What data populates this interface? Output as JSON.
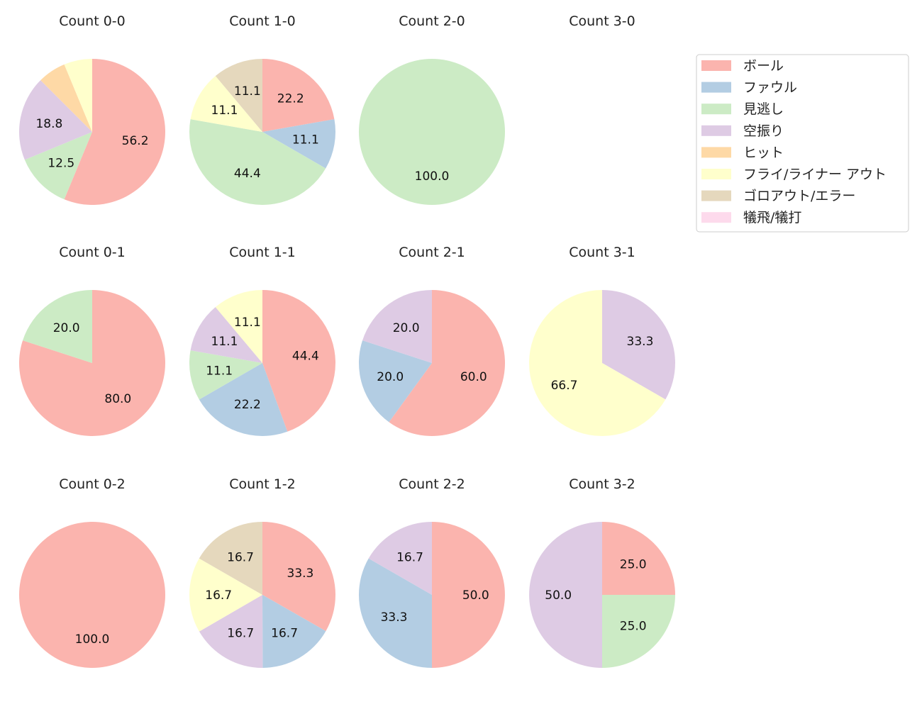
{
  "chart_data": {
    "type": "pie",
    "legend": {
      "placement": "top-right",
      "entries": [
        "ボール",
        "ファウル",
        "見逃し",
        "空振り",
        "ヒット",
        "フライ/ライナー アウト",
        "ゴロアウト/エラー",
        "犠飛/犠打"
      ]
    },
    "colors": [
      "#fbb4ae",
      "#b3cde3",
      "#ccebc5",
      "#decbe4",
      "#fed9a6",
      "#ffffcc",
      "#e5d8bd",
      "#fddaec"
    ],
    "start_angle": 90,
    "direction": "clockwise",
    "label_threshold_percent": 10,
    "charts": [
      {
        "title": "Count 0-0",
        "values": [
          56.25,
          0,
          12.5,
          18.75,
          6.25,
          6.25,
          0,
          0
        ],
        "labels": [
          "56.2",
          "",
          "12.5",
          "18.8",
          "",
          "",
          "",
          ""
        ]
      },
      {
        "title": "Count 1-0",
        "values": [
          22.2,
          11.1,
          44.4,
          0,
          0,
          11.1,
          11.1,
          0
        ],
        "labels": [
          "22.2",
          "11.1",
          "44.4",
          "",
          "",
          "11.1",
          "11.1",
          ""
        ]
      },
      {
        "title": "Count 2-0",
        "values": [
          0,
          0,
          100,
          0,
          0,
          0,
          0,
          0
        ],
        "labels": [
          "",
          "",
          "100.0",
          "",
          "",
          "",
          "",
          ""
        ]
      },
      {
        "title": "Count 3-0",
        "values": [
          0,
          0,
          0,
          0,
          0,
          0,
          0,
          0
        ],
        "labels": [
          "",
          "",
          "",
          "",
          "",
          "",
          "",
          ""
        ]
      },
      {
        "title": "Count 0-1",
        "values": [
          80,
          0,
          20,
          0,
          0,
          0,
          0,
          0
        ],
        "labels": [
          "80.0",
          "",
          "20.0",
          "",
          "",
          "",
          "",
          ""
        ]
      },
      {
        "title": "Count 1-1",
        "values": [
          44.4,
          22.2,
          11.1,
          11.1,
          0,
          11.1,
          0,
          0
        ],
        "labels": [
          "44.4",
          "22.2",
          "11.1",
          "11.1",
          "",
          "11.1",
          "",
          ""
        ]
      },
      {
        "title": "Count 2-1",
        "values": [
          60,
          20,
          0,
          20,
          0,
          0,
          0,
          0
        ],
        "labels": [
          "60.0",
          "20.0",
          "",
          "20.0",
          "",
          "",
          "",
          ""
        ]
      },
      {
        "title": "Count 3-1",
        "values": [
          0,
          0,
          0,
          33.3,
          0,
          66.7,
          0,
          0
        ],
        "labels": [
          "",
          "",
          "",
          "33.3",
          "",
          "66.7",
          "",
          ""
        ]
      },
      {
        "title": "Count 0-2",
        "values": [
          100,
          0,
          0,
          0,
          0,
          0,
          0,
          0
        ],
        "labels": [
          "100.0",
          "",
          "",
          "",
          "",
          "",
          "",
          ""
        ]
      },
      {
        "title": "Count 1-2",
        "values": [
          33.3,
          16.7,
          0,
          16.7,
          0,
          16.7,
          16.7,
          0
        ],
        "labels": [
          "33.3",
          "16.7",
          "",
          "16.7",
          "",
          "16.7",
          "16.7",
          ""
        ]
      },
      {
        "title": "Count 2-2",
        "values": [
          50,
          33.3,
          0,
          16.7,
          0,
          0,
          0,
          0
        ],
        "labels": [
          "50.0",
          "33.3",
          "",
          "16.7",
          "",
          "",
          "",
          ""
        ]
      },
      {
        "title": "Count 3-2",
        "values": [
          25,
          0,
          25,
          50,
          0,
          0,
          0,
          0
        ],
        "labels": [
          "25.0",
          "",
          "25.0",
          "50.0",
          "",
          "",
          "",
          ""
        ]
      }
    ]
  }
}
